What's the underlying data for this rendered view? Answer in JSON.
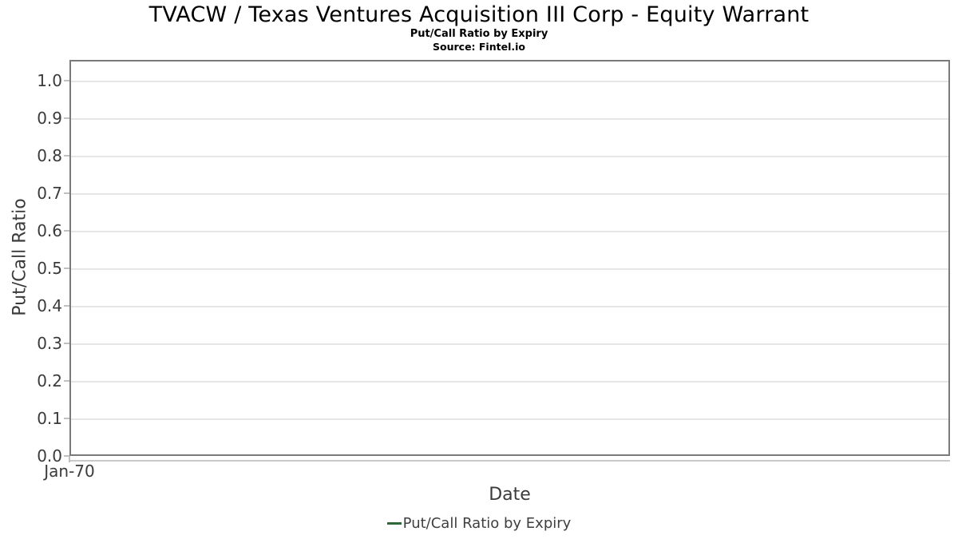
{
  "header": {
    "title": "TVACW / Texas Ventures Acquisition III Corp - Equity Warrant",
    "subtitle": "Put/Call Ratio by Expiry",
    "source": "Source: Fintel.io"
  },
  "axes": {
    "y_label": "Put/Call Ratio",
    "x_label": "Date",
    "y_ticks": [
      "1.0",
      "0.9",
      "0.8",
      "0.7",
      "0.6",
      "0.5",
      "0.4",
      "0.3",
      "0.2",
      "0.1",
      "0.0"
    ],
    "x_ticks": [
      "Jan-70"
    ]
  },
  "legend": {
    "label": "Put/Call Ratio by Expiry",
    "marker_color": "#2d6938"
  },
  "colors": {
    "background": "#ffffff",
    "title_text": "#000000",
    "axis_text": "#3b3b3b",
    "plot_border": "#7a7a7a",
    "gridline": "#e6e6e6",
    "axis_line": "#c9c9c9",
    "tick_mark": "#c0c0c0",
    "series_green": "#2d6938"
  },
  "chart_data": {
    "type": "line",
    "title": "TVACW / Texas Ventures Acquisition III Corp - Equity Warrant",
    "subtitle": "Put/Call Ratio by Expiry",
    "source_note": "Source: Fintel.io",
    "xlabel": "Date",
    "ylabel": "Put/Call Ratio",
    "x_tick_labels": [
      "Jan-70"
    ],
    "y_ticks": [
      0.0,
      0.1,
      0.2,
      0.3,
      0.4,
      0.5,
      0.6,
      0.7,
      0.8,
      0.9,
      1.0
    ],
    "ylim": [
      0,
      1.055
    ],
    "grid": "horizontal-only",
    "legend_position": "bottom-center",
    "series": [
      {
        "name": "Put/Call Ratio by Expiry",
        "color": "#2d6938",
        "x": [],
        "values": []
      }
    ]
  }
}
